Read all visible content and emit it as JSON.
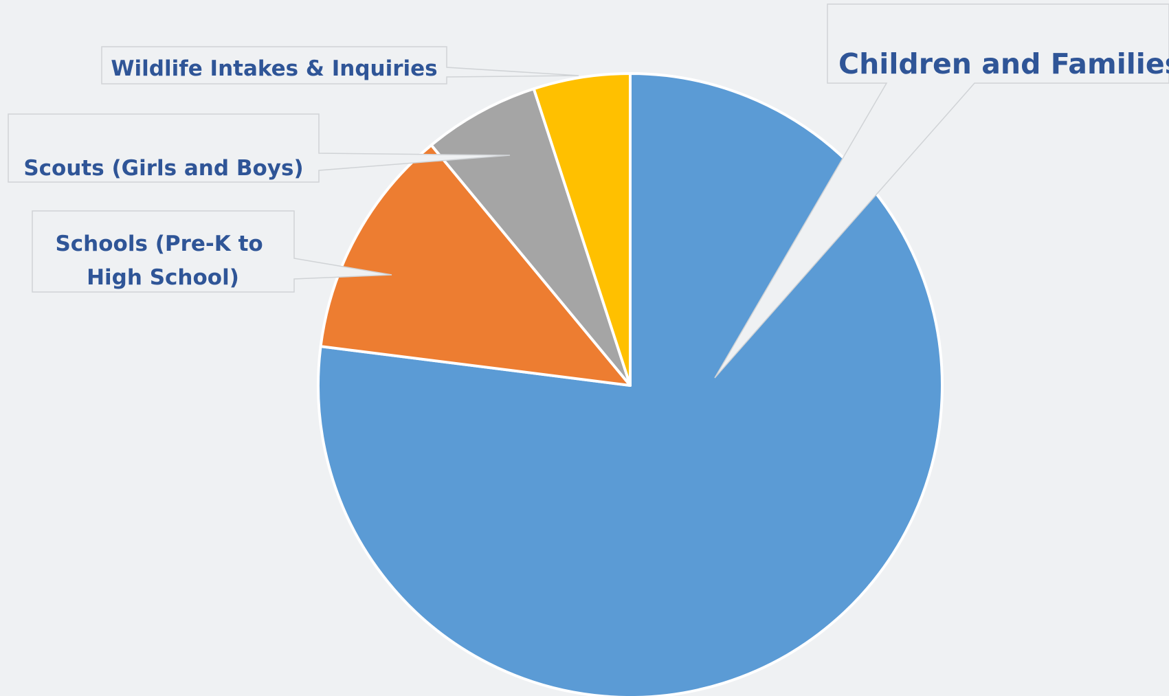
{
  "chart_data": {
    "type": "pie",
    "title": "",
    "start_angle_deg": 0,
    "direction": "clockwise",
    "slices": [
      {
        "label": "Children and Families",
        "value": 77,
        "color": "#5b9bd5",
        "exploded": false
      },
      {
        "label": "Schools (Pre-K to High School)",
        "label_lines": [
          "Schools (Pre-K to",
          "High School)"
        ],
        "value": 12,
        "color": "#ed7d31",
        "exploded": false
      },
      {
        "label": "Scouts (Girls and Boys)",
        "value": 6,
        "color": "#a5a5a5",
        "exploded": false
      },
      {
        "label": "Wildlife Intakes & Inquiries",
        "value": 5,
        "color": "#ffc000",
        "exploded": false
      }
    ],
    "callout_wedge_value": 3,
    "legend": "none"
  }
}
